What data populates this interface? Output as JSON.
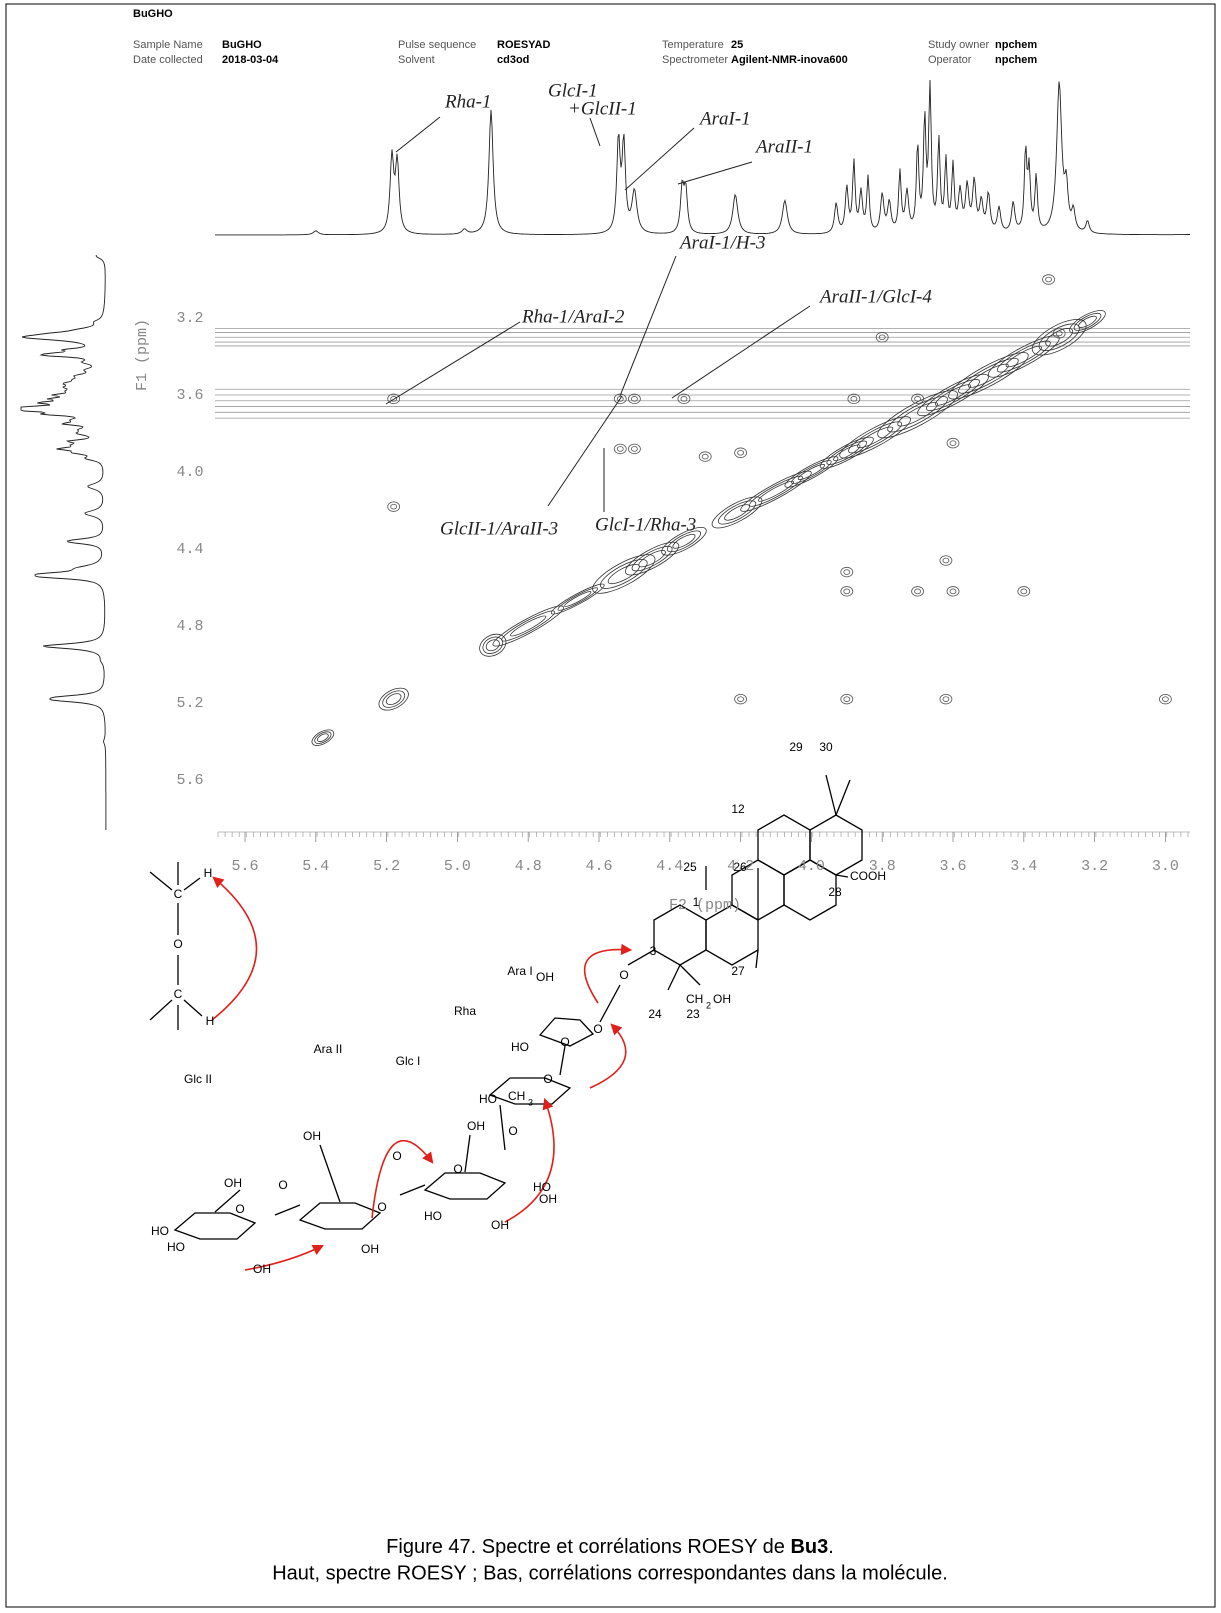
{
  "header": {
    "title": "BuGHO",
    "fields": [
      {
        "label": "Sample Name",
        "value": "BuGHO"
      },
      {
        "label": "Date collected",
        "value": "2018-03-04"
      },
      {
        "label": "Pulse sequence",
        "value": "ROESYAD"
      },
      {
        "label": "Solvent",
        "value": "cd3od"
      },
      {
        "label": "Temperature",
        "value": "25"
      },
      {
        "label": "Spectrometer",
        "value": "Agilent-NMR-inova600"
      },
      {
        "label": "Study owner",
        "value": "npchem"
      },
      {
        "label": "Operator",
        "value": "npchem"
      }
    ]
  },
  "spectrum": {
    "f2_ticks": [
      "5.6",
      "5.4",
      "5.2",
      "5.0",
      "4.8",
      "4.6",
      "4.4",
      "4.2",
      "4.0",
      "3.8",
      "3.6",
      "3.4",
      "3.2",
      "3.0"
    ],
    "f1_ticks": [
      "3.2",
      "3.6",
      "4.0",
      "4.4",
      "4.8",
      "5.2",
      "5.6"
    ],
    "f1_label": "F1 (ppm)",
    "f2_label": "F2 (ppm)",
    "annotations": [
      "Rha-1",
      "GlcI-1",
      "+GlcII-1",
      "AraI-1",
      "AraII-1",
      "Rha-1/AraI-2",
      "AraI-1/H-3",
      "AraII-1/GlcI-4",
      "GlcII-1/AraII-3",
      "GlcI-1/Rha-3"
    ]
  },
  "scheme": {
    "labels": [
      "H",
      "C",
      "O",
      "C",
      "H"
    ]
  },
  "molecule": {
    "labels": [
      "29",
      "30",
      "12",
      "25",
      "26",
      "1",
      "COOH",
      "28",
      "27",
      "3",
      "24",
      "CH",
      "2",
      "OH",
      "23",
      "O",
      "Ara I",
      "Rha",
      "OH",
      "HO",
      "O",
      "O",
      "Glc I",
      "HO",
      "CH",
      "3",
      "O",
      "O",
      "OH",
      "Ara II",
      "Glc II",
      "OH",
      "O",
      "O",
      "HO",
      "OH",
      "HO",
      "OH",
      "O",
      "OH",
      "O",
      "OH",
      "O",
      "HO",
      "HO",
      "OH"
    ]
  },
  "caption": {
    "line1_prefix": "Figure 47. Spectre et corrélations ROESY de ",
    "line1_bold": "Bu3",
    "line1_suffix": ".",
    "line2": "Haut, spectre ROESY ; Bas, corrélations correspondantes dans la molécule."
  }
}
